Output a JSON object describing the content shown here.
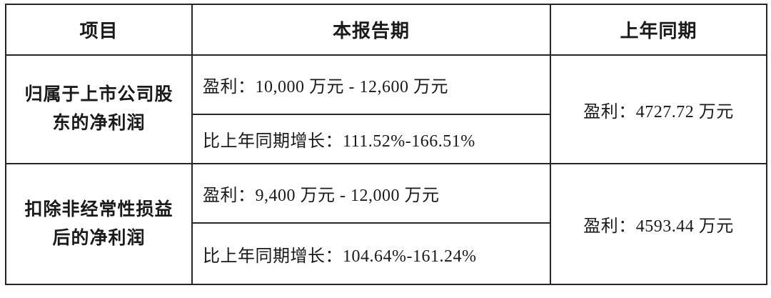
{
  "table": {
    "headers": {
      "item": "项目",
      "current_period": "本报告期",
      "prior_period": "上年同期"
    },
    "rows": [
      {
        "label": "归属于上市公司股东的净利润",
        "label_line1": "归属于上市公司股",
        "label_line2": "东的净利润",
        "profit_range": "盈利：10,000 万元 - 12,600 万元",
        "yoy_growth": "比上年同期增长：111.52%-166.51%",
        "prior_profit": "盈利：4727.72 万元"
      },
      {
        "label": "扣除非经常性损益后的净利润",
        "label_line1": "扣除非经常性损益",
        "label_line2": "后的净利润",
        "profit_range": "盈利：9,400 万元 - 12,000 万元",
        "yoy_growth": "比上年同期增长：104.64%-161.24%",
        "prior_profit": "盈利：4593.44 万元"
      }
    ],
    "colors": {
      "border": "#262626",
      "text": "#1a1a1a",
      "background": "#ffffff"
    }
  }
}
